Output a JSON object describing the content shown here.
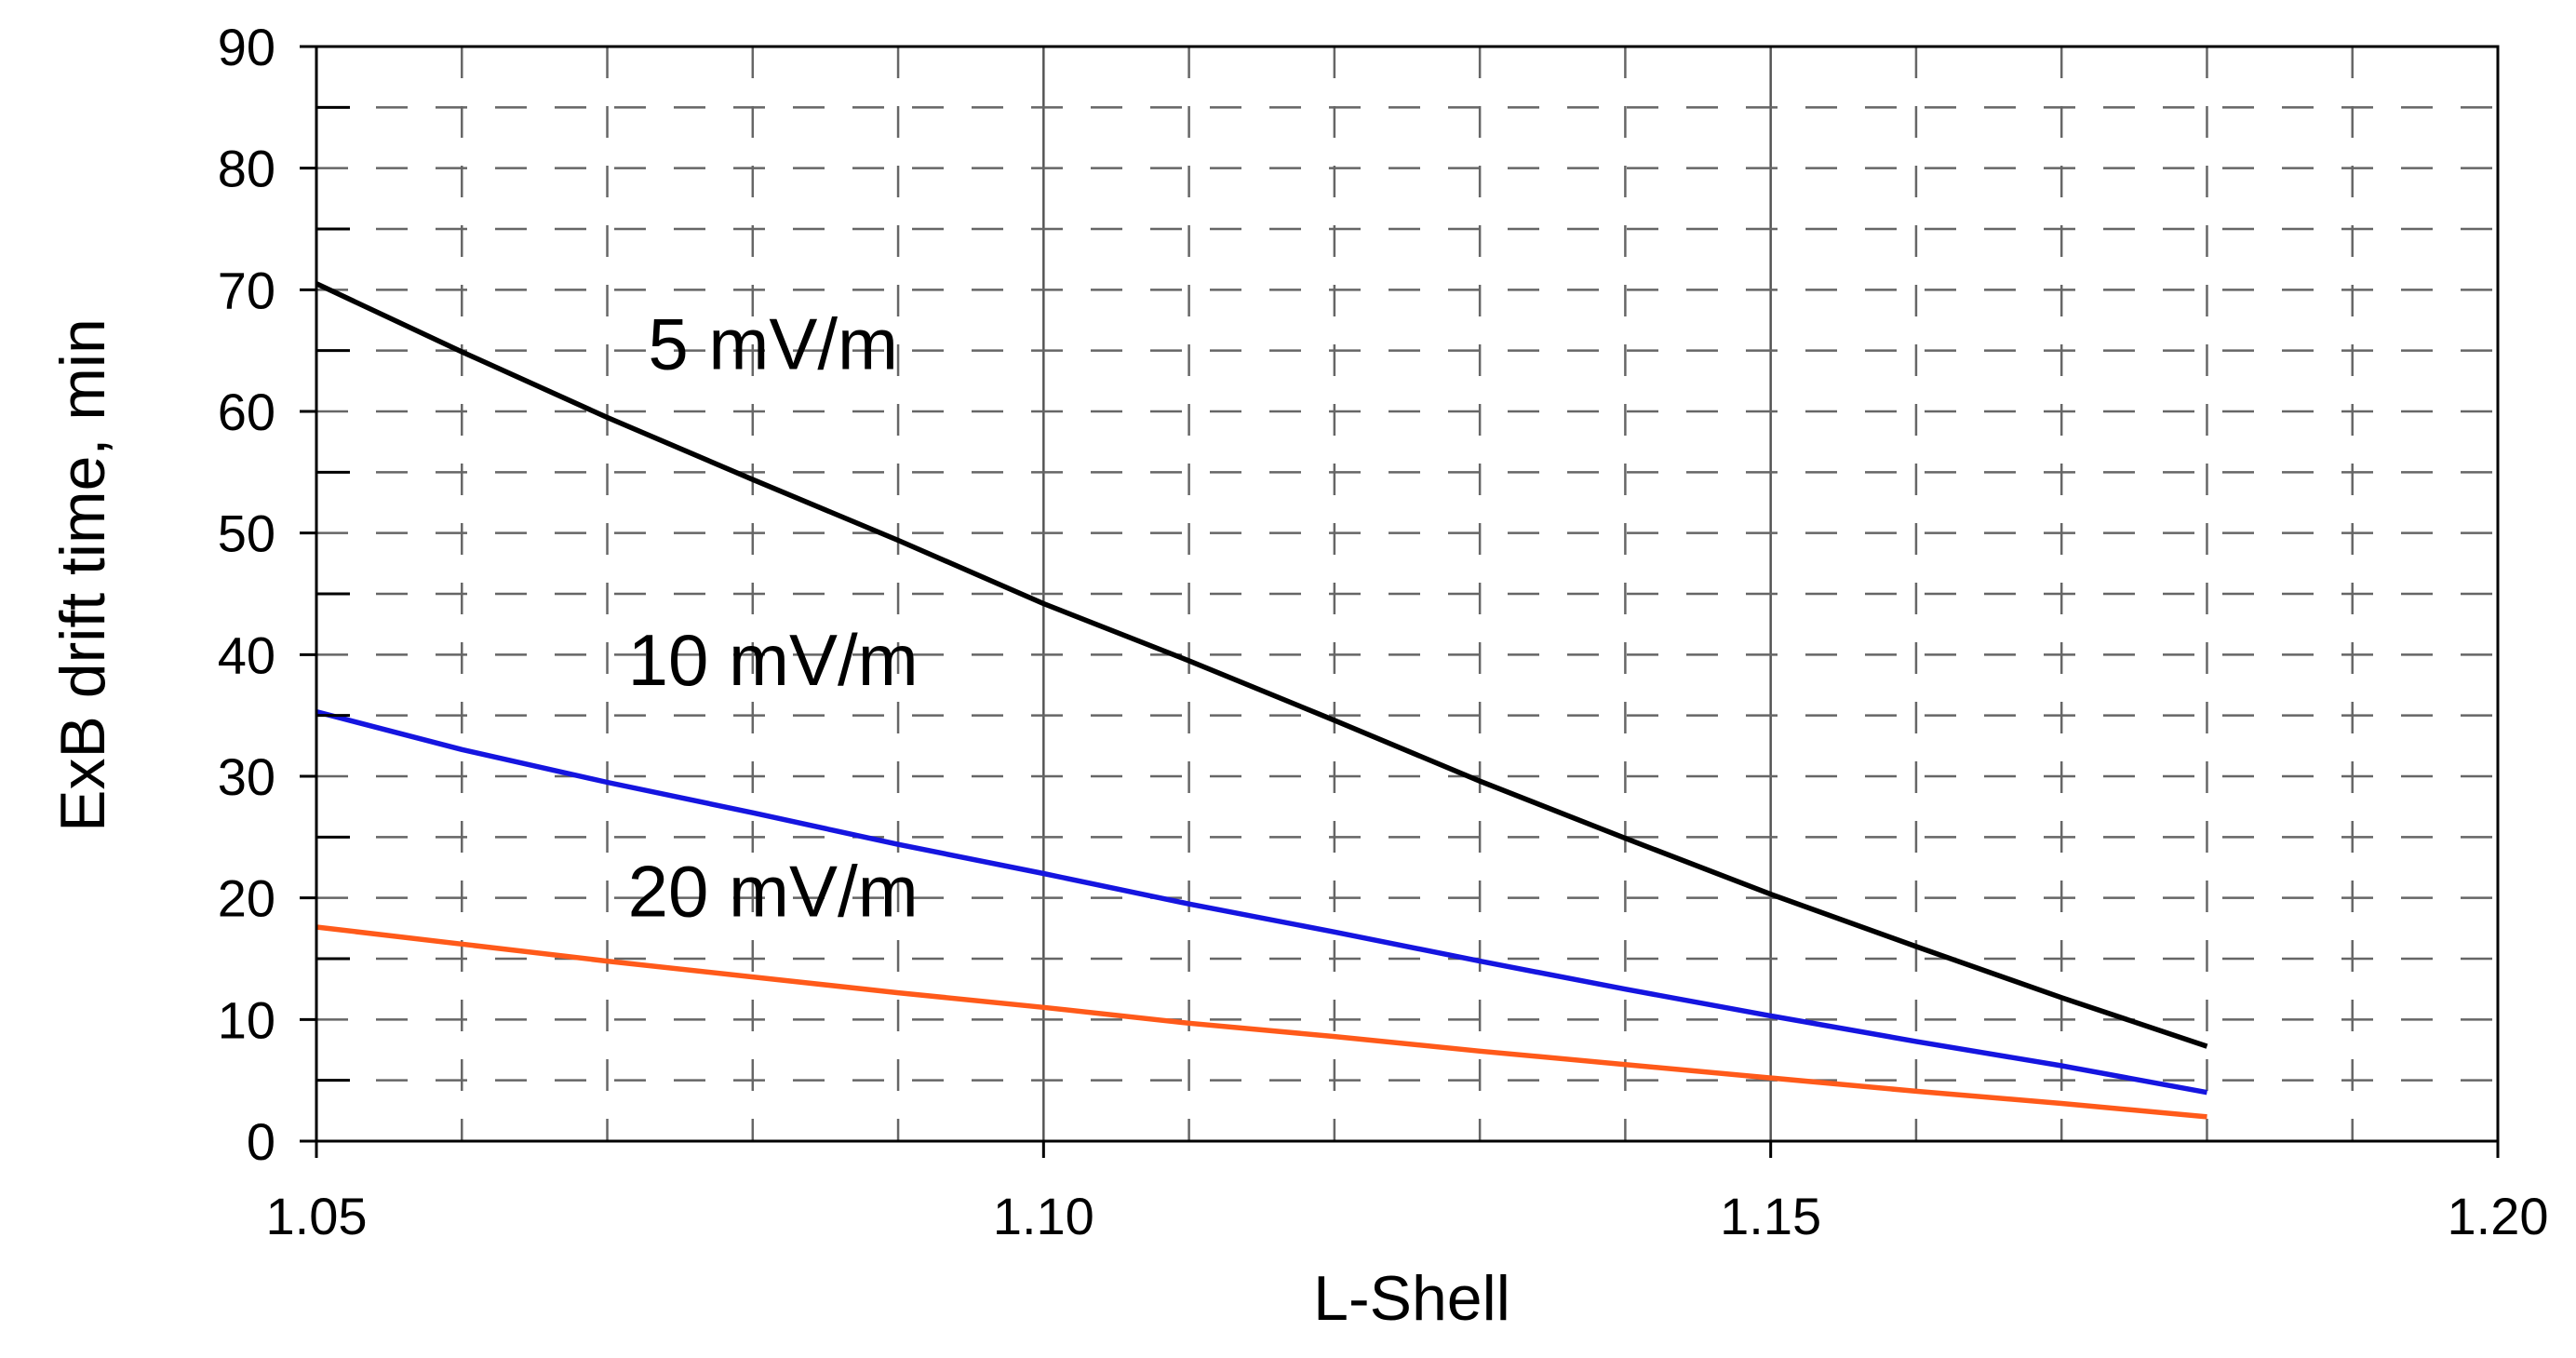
{
  "chart_data": {
    "type": "line",
    "title": "",
    "xlabel": "L-Shell",
    "ylabel": "ExB drift time, min",
    "xlim": [
      1.05,
      1.2
    ],
    "ylim": [
      0,
      90
    ],
    "x_ticks": [
      "1.05",
      "1.10",
      "1.15",
      "1.20"
    ],
    "y_ticks": [
      "0",
      "10",
      "20",
      "30",
      "40",
      "50",
      "60",
      "70",
      "80",
      "90"
    ],
    "grid": true,
    "x": [
      1.05,
      1.06,
      1.07,
      1.08,
      1.09,
      1.1,
      1.11,
      1.12,
      1.13,
      1.14,
      1.15,
      1.16,
      1.17,
      1.18
    ],
    "series": [
      {
        "name": "5 mV/m",
        "label": "5 mV/m",
        "color": "#000000",
        "values": [
          70.5,
          64.9,
          59.5,
          54.4,
          49.4,
          44.2,
          39.5,
          34.6,
          29.6,
          24.9,
          20.3,
          16.0,
          11.8,
          7.8
        ]
      },
      {
        "name": "10 mV/m",
        "label": "10 mV/m",
        "color": "#1515e0",
        "values": [
          35.3,
          32.2,
          29.5,
          27.0,
          24.4,
          22.0,
          19.5,
          17.2,
          14.8,
          12.5,
          10.3,
          8.2,
          6.2,
          4.0
        ]
      },
      {
        "name": "20 mV/m",
        "label": "20 mV/m",
        "color": "#ff5a1a",
        "values": [
          17.6,
          16.2,
          14.8,
          13.5,
          12.2,
          11.0,
          9.7,
          8.6,
          7.4,
          6.3,
          5.2,
          4.1,
          3.1,
          2.0
        ]
      }
    ]
  }
}
